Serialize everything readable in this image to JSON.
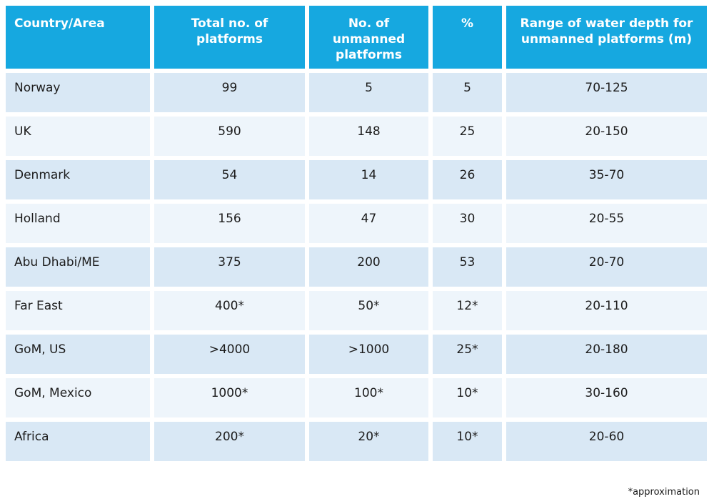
{
  "colors": {
    "header_bg": "#16A8E0",
    "header_text": "#FFFFFF",
    "row_dark": "#D9E8F5",
    "row_light": "#EEF5FB",
    "body_text": "#1C1C1C",
    "note_text": "#1A1A1A"
  },
  "table": {
    "footnote": "*approximation"
  },
  "chart_data": {
    "type": "table",
    "columns": [
      "Country/Area",
      "Total no. of platforms",
      "No. of unmanned platforms",
      "%",
      "Range of water depth for unmanned platforms (m)"
    ],
    "rows": [
      [
        "Norway",
        "99",
        "5",
        "5",
        "70-125"
      ],
      [
        "UK",
        "590",
        "148",
        "25",
        "20-150"
      ],
      [
        "Denmark",
        "54",
        "14",
        "26",
        "35-70"
      ],
      [
        "Holland",
        "156",
        "47",
        "30",
        "20-55"
      ],
      [
        "Abu Dhabi/ME",
        "375",
        "200",
        "53",
        "20-70"
      ],
      [
        "Far East",
        "400*",
        "50*",
        "12*",
        "20-110"
      ],
      [
        "GoM, US",
        ">4000",
        ">1000",
        "25*",
        "20-180"
      ],
      [
        "GoM, Mexico",
        "1000*",
        "100*",
        "10*",
        "30-160"
      ],
      [
        "Africa",
        "200*",
        "20*",
        "10*",
        "20-60"
      ]
    ],
    "footnote": "*approximation",
    "layout": {
      "row_shading": "alternating, first data row dark",
      "first_column_align": "left",
      "other_columns_align": "center"
    }
  }
}
